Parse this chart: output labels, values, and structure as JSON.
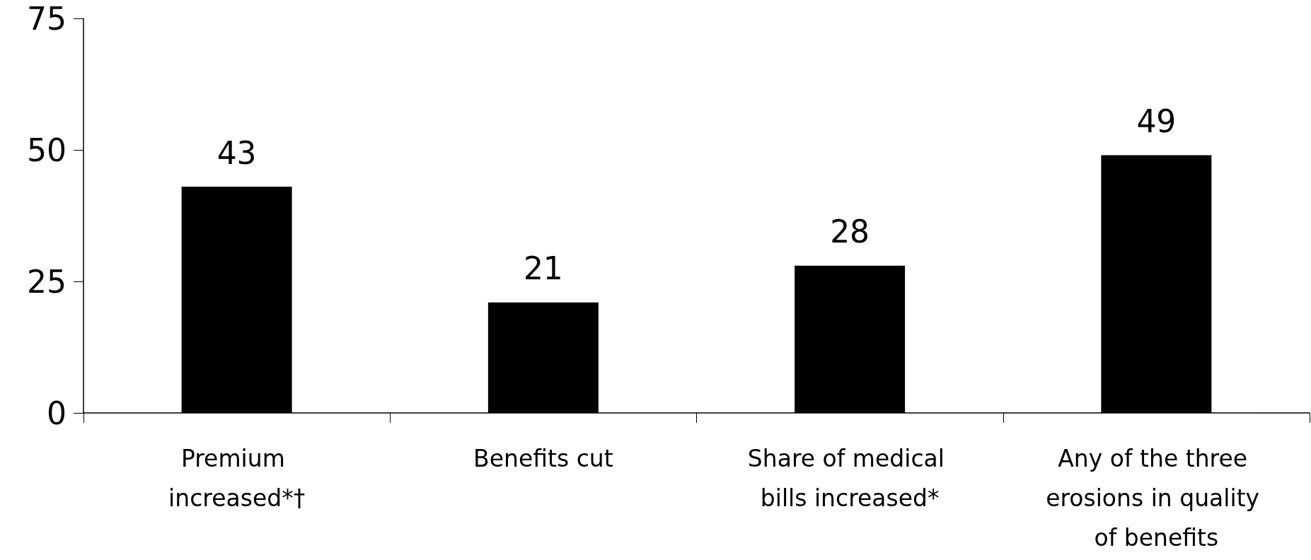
{
  "chart_data": {
    "type": "bar",
    "categories": [
      "Premium increased*†",
      "Benefits cut",
      "Share of medical bills increased*",
      "Any of the three erosions in quality of benefits"
    ],
    "values": [
      43,
      21,
      28,
      49
    ],
    "color": "#000000",
    "ylim": [
      0,
      75
    ],
    "yticks": [
      0,
      25,
      50,
      75
    ],
    "grid": false,
    "data_labels": true
  }
}
